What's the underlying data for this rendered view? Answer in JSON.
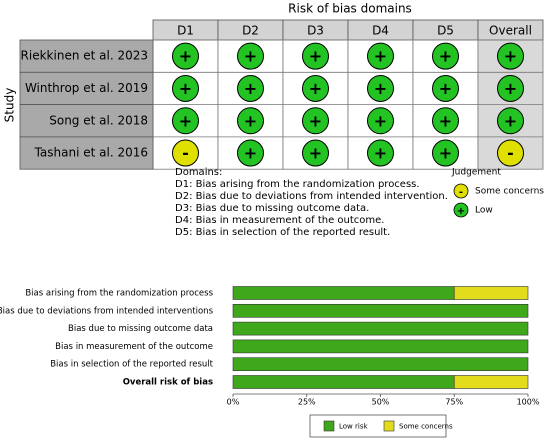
{
  "traffic_light": {
    "title": "Risk of bias domains",
    "row_axis_label": "Study",
    "columns": [
      "D1",
      "D2",
      "D3",
      "D4",
      "D5",
      "Overall"
    ],
    "rows": [
      {
        "study": "Riekkinen et al. 2023",
        "judgements": [
          "+",
          "+",
          "+",
          "+",
          "+",
          "+"
        ]
      },
      {
        "study": "Winthrop et al. 2019",
        "judgements": [
          "+",
          "+",
          "+",
          "+",
          "+",
          "+"
        ]
      },
      {
        "study": "Song et al. 2018",
        "judgements": [
          "+",
          "+",
          "+",
          "+",
          "+",
          "+"
        ]
      },
      {
        "study": "Tashani et al. 2016",
        "judgements": [
          "-",
          "+",
          "+",
          "+",
          "+",
          "-"
        ]
      }
    ],
    "domains_heading": "Domains:",
    "domains": [
      "D1: Bias arising from the randomization process.",
      "D2: Bias due to deviations from intended intervention.",
      "D3: Bias due to missing outcome data.",
      "D4: Bias in measurement of the outcome.",
      "D5: Bias in selection of the reported result."
    ],
    "legend_title": "Judgement",
    "legend": [
      {
        "symbol": "-",
        "label": "Some concerns",
        "color": "#e0e000"
      },
      {
        "symbol": "+",
        "label": "Low",
        "color": "#22c322"
      }
    ]
  },
  "chart_data": {
    "type": "stacked-barh",
    "categories": [
      "Bias arising from the randomization process",
      "Bias due to deviations from intended interventions",
      "Bias due to missing outcome data",
      "Bias in measurement of the outcome",
      "Bias in selection of the reported result",
      "Overall risk of bias"
    ],
    "series": [
      {
        "name": "Low risk",
        "color": "#3fa81a",
        "values": [
          75,
          100,
          100,
          100,
          100,
          75
        ]
      },
      {
        "name": "Some concerns",
        "color": "#e3dc1c",
        "values": [
          25,
          0,
          0,
          0,
          0,
          25
        ]
      }
    ],
    "xlim": [
      0,
      100
    ],
    "xticks": [
      {
        "value": 0,
        "label": "0%"
      },
      {
        "value": 25,
        "label": "25%"
      },
      {
        "value": 50,
        "label": "50%"
      },
      {
        "value": 75,
        "label": "75%"
      },
      {
        "value": 100,
        "label": "100%"
      }
    ],
    "legend": "bottom"
  }
}
